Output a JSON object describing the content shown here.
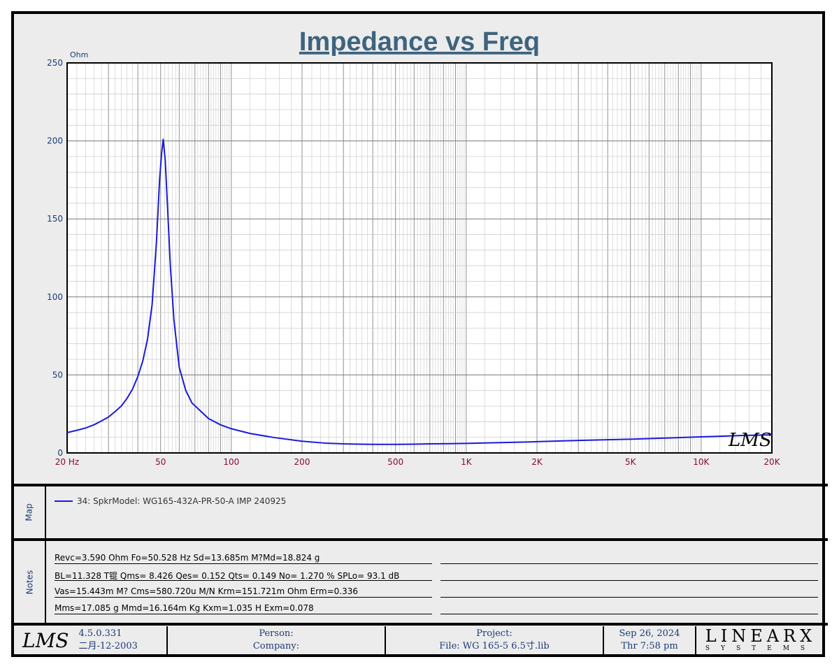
{
  "chart_data": {
    "type": "line",
    "title": "Impedance vs Freq",
    "ylabel": "Ohm",
    "xlabel": "",
    "xscale": "log",
    "xlim": [
      20,
      20000
    ],
    "ylim": [
      0,
      250
    ],
    "grid": true,
    "x_ticks": [
      {
        "value": 20,
        "label": "20  Hz"
      },
      {
        "value": 50,
        "label": "50"
      },
      {
        "value": 100,
        "label": "100"
      },
      {
        "value": 200,
        "label": "200"
      },
      {
        "value": 500,
        "label": "500"
      },
      {
        "value": 1000,
        "label": "1K"
      },
      {
        "value": 2000,
        "label": "2K"
      },
      {
        "value": 5000,
        "label": "5K"
      },
      {
        "value": 10000,
        "label": "10K"
      },
      {
        "value": 20000,
        "label": "20K"
      }
    ],
    "y_ticks": [
      {
        "value": 0,
        "label": "0"
      },
      {
        "value": 50,
        "label": "50"
      },
      {
        "value": 100,
        "label": "100"
      },
      {
        "value": 150,
        "label": "150"
      },
      {
        "value": 200,
        "label": "200"
      },
      {
        "value": 250,
        "label": "250"
      }
    ],
    "series": [
      {
        "name": "34: SpkrModel: WG165-432A-PR-50-A IMP 240925",
        "color": "#1a1add",
        "points": [
          [
            20,
            13
          ],
          [
            22,
            14.5
          ],
          [
            24,
            16
          ],
          [
            26,
            18
          ],
          [
            28,
            20.5
          ],
          [
            30,
            23
          ],
          [
            32,
            26.5
          ],
          [
            34,
            30
          ],
          [
            36,
            35
          ],
          [
            38,
            41
          ],
          [
            40,
            49
          ],
          [
            42,
            59
          ],
          [
            44,
            73
          ],
          [
            46,
            95
          ],
          [
            48,
            135
          ],
          [
            49.5,
            175
          ],
          [
            50.5,
            192
          ],
          [
            51.3,
            201
          ],
          [
            52.3,
            188
          ],
          [
            53.5,
            158
          ],
          [
            55,
            120
          ],
          [
            57,
            85
          ],
          [
            60,
            55
          ],
          [
            64,
            40
          ],
          [
            68,
            32
          ],
          [
            75,
            26
          ],
          [
            80,
            22
          ],
          [
            90,
            18
          ],
          [
            100,
            15.5
          ],
          [
            120,
            12.5
          ],
          [
            150,
            10
          ],
          [
            200,
            7.5
          ],
          [
            250,
            6.3
          ],
          [
            300,
            5.8
          ],
          [
            400,
            5.5
          ],
          [
            500,
            5.5
          ],
          [
            600,
            5.6
          ],
          [
            700,
            5.8
          ],
          [
            800,
            5.9
          ],
          [
            1000,
            6.1
          ],
          [
            1500,
            6.7
          ],
          [
            2000,
            7.2
          ],
          [
            3000,
            8
          ],
          [
            5000,
            8.8
          ],
          [
            7000,
            9.5
          ],
          [
            10000,
            10.3
          ],
          [
            15000,
            11.2
          ],
          [
            20000,
            11.6
          ]
        ]
      }
    ]
  },
  "map": {
    "label": "Map",
    "legend_text": "34: SpkrModel: WG165-432A-PR-50-A IMP 240925",
    "legend_color": "#1a1add"
  },
  "notes": {
    "label": "Notes",
    "lines": [
      "Revc=3.590 Ohm  Fo=50.528 Hz  Sd=13.685m M?Md=18.824 g",
      "BL=11.328 T锟  Qms= 8.426  Qes= 0.152  Qts= 0.149  No= 1.270 %  SPLo= 93.1 dB",
      "Vas=15.443m M? Cms=580.720u M/N  Krm=151.721m Ohm  Erm=0.336",
      "Mms=17.085 g  Mmd=16.164m Kg  Kxm=1.035 H  Exm=0.078"
    ]
  },
  "footer": {
    "lms_logo": "LMS",
    "version": "4.5.0.331",
    "version_date": "二月-12-2003",
    "person_label": "Person:",
    "company_label": "Company:",
    "project_label": "Project:",
    "file_label": "File: WG 165-5 6.5寸.lib",
    "date": "Sep 26, 2024",
    "time": "Thr  7:58 pm",
    "brand_top": "LINEARX",
    "brand_bottom": "SYSTEMS"
  },
  "watermark": "LMS"
}
